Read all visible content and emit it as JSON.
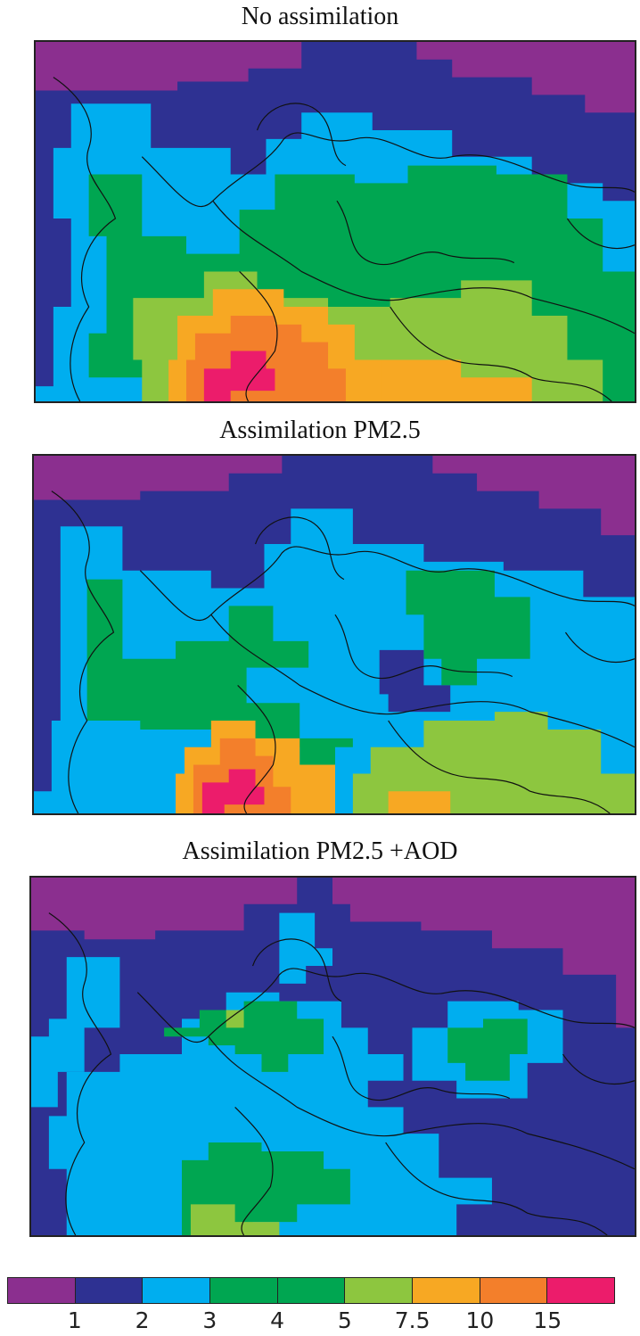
{
  "panels": [
    {
      "title": "No assimilation"
    },
    {
      "title": "Assimilation PM2.5"
    },
    {
      "title": "Assimilation PM2.5 +AOD"
    }
  ],
  "legend": {
    "colors": [
      "#8b2f8f",
      "#2e3192",
      "#00aeef",
      "#00a651",
      "#00a651",
      "#8dc63f",
      "#f7a823",
      "#f37f2b",
      "#ec1c6b"
    ],
    "labels": [
      "1",
      "2",
      "3",
      "4",
      "5",
      "7.5",
      "10",
      "15"
    ]
  }
}
